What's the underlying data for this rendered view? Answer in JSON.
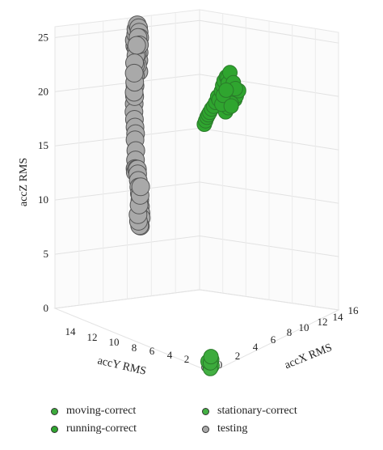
{
  "chart_data": {
    "type": "scatter",
    "projection": "3d",
    "title": "",
    "xlabel": "accX RMS",
    "ylabel": "accY RMS",
    "zlabel": "accZ RMS",
    "xlim": [
      0,
      16
    ],
    "ylim": [
      0,
      15
    ],
    "zlim": [
      0,
      26
    ],
    "x_ticks": [
      "0",
      "2",
      "4",
      "6",
      "8",
      "10",
      "12",
      "14",
      "16"
    ],
    "y_ticks": [
      "2",
      "4",
      "6",
      "8",
      "10",
      "12",
      "14"
    ],
    "z_ticks": [
      "0",
      "5",
      "10",
      "15",
      "20",
      "25"
    ],
    "grid": true,
    "legend_position": "bottom",
    "series": [
      {
        "name": "moving-correct",
        "color": "#3cab3c",
        "points": [
          [
            0.3,
            0.4,
            0.5
          ],
          [
            0.4,
            0.3,
            0.8
          ],
          [
            0.2,
            0.5,
            0.6
          ],
          [
            0.5,
            0.5,
            0.4
          ],
          [
            0.3,
            0.3,
            1.1
          ]
        ]
      },
      {
        "name": "stationary-correct",
        "color": "#43b043",
        "points": [
          [
            0.2,
            0.2,
            0.2
          ],
          [
            0.3,
            0.2,
            0.3
          ],
          [
            0.2,
            0.3,
            0.4
          ],
          [
            0.1,
            0.2,
            0.1
          ]
        ]
      },
      {
        "name": "running-correct",
        "color": "#2fa52f",
        "points": [
          [
            5.0,
            4.5,
            19.6
          ],
          [
            5.3,
            4.6,
            19.8
          ],
          [
            5.6,
            4.7,
            20.0
          ],
          [
            5.9,
            4.8,
            20.1
          ],
          [
            6.2,
            4.9,
            20.2
          ],
          [
            6.7,
            5.1,
            20.3
          ],
          [
            7.1,
            5.2,
            20.4
          ],
          [
            7.5,
            5.3,
            20.6
          ],
          [
            8.0,
            5.5,
            20.9
          ],
          [
            8.3,
            5.6,
            20.5
          ],
          [
            8.6,
            5.6,
            21.2
          ],
          [
            8.9,
            5.7,
            21.6
          ],
          [
            9.2,
            5.8,
            21.9
          ],
          [
            9.5,
            5.8,
            22.2
          ],
          [
            9.8,
            5.9,
            22.0
          ],
          [
            10.0,
            6.0,
            21.4
          ],
          [
            10.3,
            6.0,
            20.8
          ],
          [
            10.6,
            6.1,
            20.2
          ],
          [
            10.8,
            6.2,
            19.8
          ],
          [
            11.1,
            6.2,
            19.5
          ],
          [
            11.4,
            6.3,
            19.7
          ],
          [
            11.7,
            6.3,
            20.1
          ],
          [
            9.4,
            5.8,
            19.0
          ],
          [
            9.9,
            5.9,
            19.2
          ],
          [
            10.4,
            6.0,
            19.4
          ],
          [
            8.8,
            5.7,
            19.9
          ],
          [
            9.1,
            5.8,
            20.6
          ],
          [
            10.2,
            6.0,
            22.3
          ],
          [
            10.9,
            6.2,
            21.1
          ],
          [
            11.3,
            6.3,
            20.4
          ],
          [
            9.6,
            5.9,
            20.9
          ],
          [
            10.5,
            6.1,
            19.1
          ]
        ]
      },
      {
        "name": "testing",
        "color": "#a9a9a9",
        "points": [
          [
            4.8,
            11.0,
            24.4
          ],
          [
            5.0,
            11.2,
            24.8
          ],
          [
            5.3,
            11.3,
            25.2
          ],
          [
            5.6,
            11.5,
            25.5
          ],
          [
            5.9,
            11.6,
            25.8
          ],
          [
            6.2,
            11.7,
            25.4
          ],
          [
            6.4,
            11.8,
            24.9
          ],
          [
            6.6,
            11.9,
            24.3
          ],
          [
            6.7,
            12.0,
            23.6
          ],
          [
            6.8,
            12.1,
            22.8
          ],
          [
            6.9,
            12.2,
            22.0
          ],
          [
            6.5,
            11.9,
            21.2
          ],
          [
            6.2,
            11.8,
            21.9
          ],
          [
            5.9,
            11.6,
            23.1
          ],
          [
            5.5,
            11.4,
            23.8
          ],
          [
            5.2,
            11.2,
            23.3
          ],
          [
            4.9,
            11.0,
            22.6
          ],
          [
            4.6,
            10.8,
            21.8
          ],
          [
            4.3,
            10.6,
            21.0
          ],
          [
            4.1,
            10.5,
            20.2
          ],
          [
            3.8,
            10.3,
            19.6
          ],
          [
            3.9,
            10.4,
            18.8
          ],
          [
            4.1,
            10.5,
            18.0
          ],
          [
            4.3,
            10.6,
            17.2
          ],
          [
            4.5,
            10.7,
            16.5
          ],
          [
            4.7,
            10.9,
            15.8
          ],
          [
            4.4,
            10.6,
            15.0
          ],
          [
            4.1,
            10.4,
            14.3
          ],
          [
            3.9,
            10.3,
            13.6
          ],
          [
            4.2,
            10.5,
            13.1
          ],
          [
            4.6,
            10.7,
            13.2
          ],
          [
            5.0,
            10.9,
            13.0
          ],
          [
            5.3,
            11.1,
            12.4
          ],
          [
            5.5,
            11.2,
            11.7
          ],
          [
            5.7,
            11.3,
            11.0
          ],
          [
            5.9,
            11.4,
            10.3
          ],
          [
            6.1,
            11.5,
            9.6
          ],
          [
            6.3,
            11.6,
            8.9
          ],
          [
            6.5,
            11.7,
            8.2
          ],
          [
            6.8,
            11.9,
            7.6
          ],
          [
            6.3,
            11.6,
            7.1
          ],
          [
            5.8,
            11.3,
            7.4
          ],
          [
            5.4,
            11.1,
            8.0
          ],
          [
            5.2,
            11.0,
            8.7
          ],
          [
            5.6,
            11.2,
            9.4
          ],
          [
            6.0,
            11.4,
            10.1
          ],
          [
            6.2,
            11.5,
            10.8
          ],
          [
            3.6,
            10.1,
            20.4
          ],
          [
            3.4,
            10.0,
            20.9
          ],
          [
            4.0,
            10.4,
            21.5
          ],
          [
            6.0,
            11.6,
            24.6
          ],
          [
            6.3,
            11.7,
            23.8
          ],
          [
            5.7,
            11.5,
            24.0
          ],
          [
            4.5,
            10.8,
            23.0
          ],
          [
            4.2,
            10.6,
            22.2
          ]
        ]
      }
    ]
  },
  "legend": {
    "items": [
      {
        "label": "moving-correct",
        "color": "#3cab3c"
      },
      {
        "label": "stationary-correct",
        "color": "#43b043"
      },
      {
        "label": "running-correct",
        "color": "#2fa52f"
      },
      {
        "label": "testing",
        "color": "#a9a9a9"
      }
    ]
  }
}
